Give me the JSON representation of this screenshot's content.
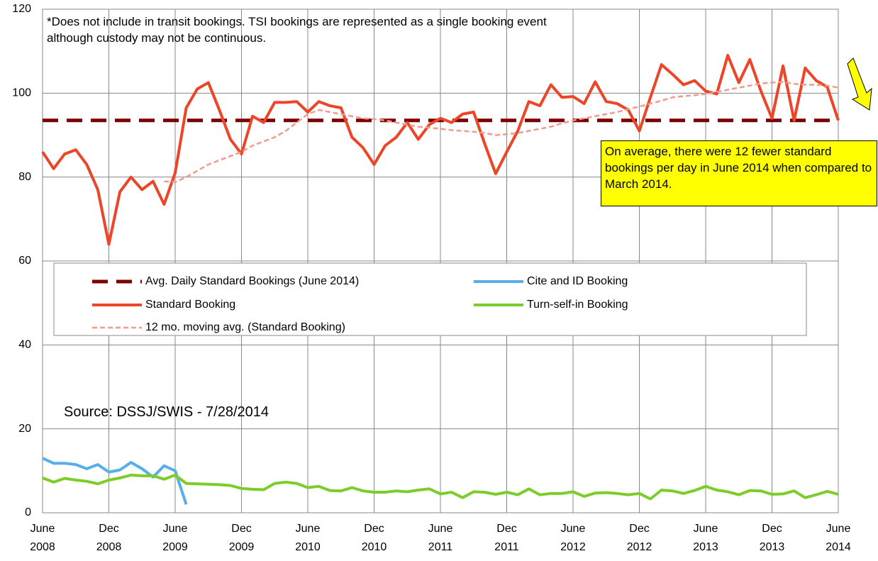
{
  "chart_data": {
    "type": "line",
    "annotations": {
      "note": "*Does not include in transit bookings. TSI bookings are represented as a single booking event although custody may not be continuous.",
      "source": "Source: DSSJ/SWIS - 7/28/2014",
      "callout": "On average, there were 12 fewer standard bookings per day in June 2014 when compared to March 2014."
    },
    "categories": [
      "June 2008",
      null,
      null,
      null,
      null,
      null,
      "Dec 2008",
      null,
      null,
      null,
      null,
      null,
      "June 2009",
      null,
      null,
      null,
      null,
      null,
      "Dec 2009",
      null,
      null,
      null,
      null,
      null,
      "June 2010",
      null,
      null,
      null,
      null,
      null,
      "Dec 2010",
      null,
      null,
      null,
      null,
      null,
      "June 2011",
      null,
      null,
      null,
      null,
      null,
      "Dec 2011",
      null,
      null,
      null,
      null,
      null,
      "June 2012",
      null,
      null,
      null,
      null,
      null,
      "Dec 2012",
      null,
      null,
      null,
      null,
      null,
      "June 2013",
      null,
      null,
      null,
      null,
      null,
      "Dec 2013",
      null,
      null,
      null,
      null,
      null,
      "June 2014"
    ],
    "ylim": [
      0,
      120
    ],
    "yticks": [
      0,
      20,
      40,
      60,
      80,
      100,
      120
    ],
    "grid": true,
    "series": [
      {
        "name": "Avg. Daily Standard Bookings (June 2014)",
        "color": "#7b0000",
        "line_style": "dashed",
        "values": [
          93.5,
          93.5,
          93.5,
          93.5,
          93.5,
          93.5,
          93.5,
          93.5,
          93.5,
          93.5,
          93.5,
          93.5,
          93.5,
          93.5,
          93.5,
          93.5,
          93.5,
          93.5,
          93.5,
          93.5,
          93.5,
          93.5,
          93.5,
          93.5,
          93.5,
          93.5,
          93.5,
          93.5,
          93.5,
          93.5,
          93.5,
          93.5,
          93.5,
          93.5,
          93.5,
          93.5,
          93.5,
          93.5,
          93.5,
          93.5,
          93.5,
          93.5,
          93.5,
          93.5,
          93.5,
          93.5,
          93.5,
          93.5,
          93.5,
          93.5,
          93.5,
          93.5,
          93.5,
          93.5,
          93.5,
          93.5,
          93.5,
          93.5,
          93.5,
          93.5,
          93.5,
          93.5,
          93.5,
          93.5,
          93.5,
          93.5,
          93.5,
          93.5,
          93.5,
          93.5,
          93.5,
          93.5,
          93.5
        ]
      },
      {
        "name": "Standard Booking",
        "color": "#ec4528",
        "line_style": "solid",
        "values": [
          86,
          82,
          85.5,
          86.5,
          83,
          77,
          64,
          76.5,
          80,
          77,
          79,
          73.5,
          81,
          96.5,
          101,
          102.5,
          96,
          89,
          85.5,
          94.5,
          93,
          97.8,
          97.8,
          98,
          95.5,
          98,
          97,
          96.5,
          89.5,
          87,
          83,
          87.5,
          89.5,
          93,
          89,
          92.5,
          94,
          93,
          95,
          95.5,
          88,
          80.8,
          86,
          91,
          98,
          97,
          102,
          99,
          99.2,
          97.5,
          102.7,
          98,
          97.5,
          96,
          91,
          99,
          106.8,
          104.5,
          102,
          103,
          100.5,
          99.8,
          109,
          102.5,
          108,
          100.5,
          94,
          106.5,
          93.5,
          106,
          103,
          101.5,
          93.5
        ]
      },
      {
        "name": "12 mo. moving avg. (Standard Booking)",
        "color": "#f39a88",
        "line_style": "dotted",
        "values": [
          null,
          null,
          null,
          null,
          null,
          null,
          null,
          null,
          null,
          null,
          null,
          79,
          78.8,
          80,
          81.5,
          83,
          84,
          85,
          86,
          87.5,
          88.5,
          89.5,
          91,
          93,
          95,
          96,
          95.5,
          95,
          94.5,
          94,
          93.8,
          93.5,
          93,
          92.5,
          92,
          91.8,
          91.5,
          91.2,
          91,
          90.8,
          90.5,
          90,
          90.2,
          90.5,
          91,
          91.5,
          92,
          92.8,
          93.5,
          94,
          94.5,
          95,
          95.5,
          96.2,
          96.8,
          97.5,
          98.2,
          99,
          99.3,
          99.5,
          99.8,
          100.3,
          100.8,
          101.3,
          101.8,
          102.3,
          102.5,
          102.7,
          102.2,
          102,
          102,
          101.8,
          101.3
        ]
      },
      {
        "name": "Cite and ID Booking",
        "color": "#58aeea",
        "line_style": "solid",
        "values": [
          13,
          11.8,
          11.8,
          11.5,
          10.5,
          11.5,
          9.7,
          10.2,
          12,
          10.5,
          8.5,
          11.2,
          10,
          2,
          null,
          null,
          null,
          null,
          null,
          null,
          null,
          null,
          null,
          null,
          null,
          null,
          null,
          null,
          null,
          null,
          null,
          null,
          null,
          null,
          null,
          null,
          null,
          null,
          null,
          null,
          null,
          null,
          null,
          null,
          null,
          null,
          null,
          null,
          null,
          null,
          null,
          null,
          null,
          null,
          null,
          null,
          null,
          null,
          null,
          null,
          null,
          null,
          null,
          null,
          null,
          null,
          null,
          null,
          null,
          null,
          null,
          null,
          null
        ]
      },
      {
        "name": "Turn-self-in Booking",
        "color": "#7ccc2a",
        "line_style": "solid",
        "values": [
          8.3,
          7.3,
          8.2,
          7.8,
          7.5,
          6.9,
          7.8,
          8.3,
          9,
          8.8,
          8.8,
          8,
          9,
          7,
          6.9,
          6.8,
          6.7,
          6.5,
          5.8,
          5.6,
          5.5,
          7,
          7.3,
          7,
          6,
          6.3,
          5.3,
          5.2,
          6,
          5.2,
          4.9,
          4.9,
          5.2,
          5,
          5.4,
          5.7,
          4.5,
          4.9,
          3.6,
          5,
          4.9,
          4.4,
          4.9,
          4.3,
          5.7,
          4.3,
          4.6,
          4.6,
          5,
          3.9,
          4.7,
          4.8,
          4.6,
          4.3,
          4.6,
          3.3,
          5.4,
          5.2,
          4.6,
          5.3,
          6.3,
          5.4,
          5,
          4.3,
          5.3,
          5.2,
          4.4,
          4.5,
          5.2,
          3.6,
          4.3,
          5.1,
          4.4
        ]
      }
    ]
  }
}
